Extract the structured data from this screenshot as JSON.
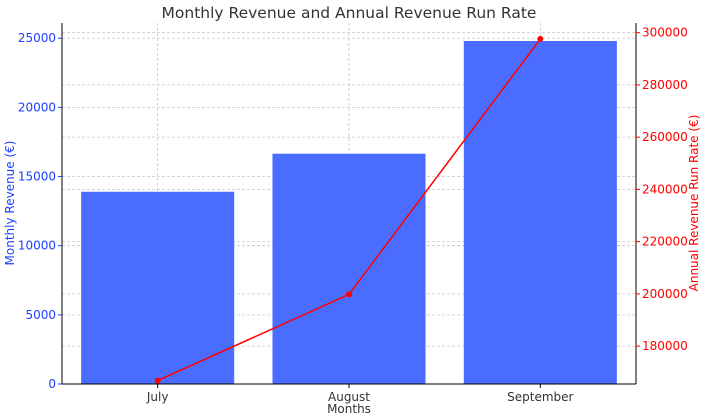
{
  "chart_data": {
    "type": "bar",
    "title": "Monthly Revenue and Annual Revenue Run Rate",
    "xlabel": "Months",
    "ylabel": "Monthly Revenue (€)",
    "y2label": "Annual Revenue Run Rate (€)",
    "categories": [
      "July",
      "August",
      "September"
    ],
    "grid": true,
    "ylim": [
      0,
      26100
    ],
    "y2lim": [
      165500,
      303700
    ],
    "yticks": [
      "0",
      "5000",
      "10000",
      "15000",
      "20000",
      "25000"
    ],
    "y2ticks": [
      "180000",
      "200000",
      "220000",
      "240000",
      "260000",
      "280000",
      "300000"
    ],
    "series": [
      {
        "type": "bar",
        "axis": "left",
        "color": "#4a6dff",
        "values": [
          13900,
          16650,
          24800
        ]
      },
      {
        "type": "line",
        "axis": "right",
        "color": "#ff0000",
        "marker": "circle",
        "values": [
          166800,
          199800,
          297600
        ]
      }
    ],
    "colors": {
      "left_axis": "#1f3fff",
      "right_axis": "#ff0000",
      "grid": "#c8c8c8",
      "text": "#333333"
    }
  }
}
